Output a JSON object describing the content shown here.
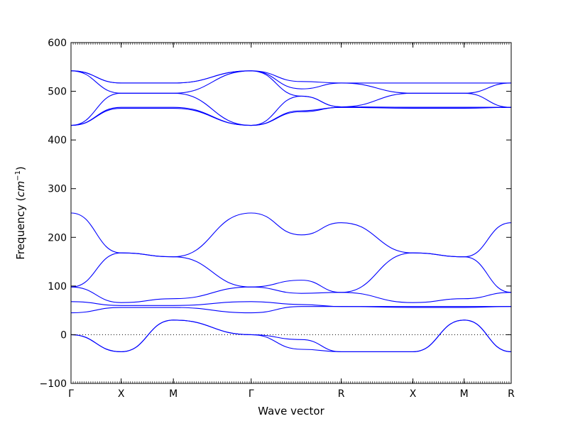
{
  "chart_data": {
    "type": "line",
    "title": "",
    "xlabel": "Wave vector",
    "ylabel": "Frequency",
    "ylabel_unit_base": "cm",
    "ylabel_unit_exp": "−1",
    "ylim": [
      -100,
      600
    ],
    "yticks": [
      -100,
      0,
      100,
      200,
      300,
      400,
      500,
      600
    ],
    "y_tick_labels": [
      "−100",
      "0",
      "100",
      "200",
      "300",
      "400",
      "500",
      "600"
    ],
    "xlim": [
      0,
      8
    ],
    "xticks": [
      0,
      1,
      2,
      3,
      4,
      5,
      6,
      7,
      8
    ],
    "x_tick_labels": [
      "Γ",
      "X",
      "M",
      "Γ",
      "R",
      "X",
      "M",
      "R"
    ],
    "x_tick_positions": [
      0,
      0.98,
      2.0,
      3.52,
      5.28,
      6.68,
      7.68,
      8.6
    ],
    "x_range": [
      0,
      8.6
    ],
    "zero_line": true,
    "line_color": "#0000ff",
    "zero_line_color": "#000000",
    "series": [
      {
        "x": [
          0,
          0.98,
          2.0,
          3.52,
          4.5,
          5.28,
          6.68,
          7.68,
          8.6
        ],
        "values": [
          542,
          517,
          517,
          542,
          520,
          517,
          517,
          517,
          517
        ]
      },
      {
        "x": [
          0,
          0.98,
          2.0,
          3.52,
          4.5,
          5.28,
          6.68,
          7.68,
          8.6
        ],
        "values": [
          542,
          517,
          517,
          542,
          505,
          517,
          496,
          496,
          517
        ]
      },
      {
        "x": [
          0,
          0.98,
          2.0,
          3.52,
          4.5,
          5.28,
          6.68,
          7.68,
          8.6
        ],
        "values": [
          542,
          496,
          496,
          542,
          490,
          468,
          496,
          496,
          467
        ]
      },
      {
        "x": [
          0,
          0.98,
          2.0,
          3.52,
          4.5,
          5.28,
          6.68,
          7.68,
          8.6
        ],
        "values": [
          430,
          496,
          496,
          430,
          490,
          468,
          467,
          467,
          467
        ]
      },
      {
        "x": [
          0,
          0.98,
          2.0,
          3.52,
          4.5,
          5.28,
          6.68,
          7.68,
          8.6
        ],
        "values": [
          430,
          467,
          467,
          430,
          460,
          467,
          467,
          467,
          467
        ]
      },
      {
        "x": [
          0,
          0.98,
          2.0,
          3.52,
          4.5,
          5.28,
          6.68,
          7.68,
          8.6
        ],
        "values": [
          430,
          465,
          465,
          430,
          458,
          467,
          465,
          465,
          467
        ]
      },
      {
        "x": [
          0,
          0.98,
          2.0,
          3.52,
          4.5,
          5.28,
          6.68,
          7.68,
          8.6
        ],
        "values": [
          250,
          168,
          160,
          250,
          205,
          230,
          168,
          160,
          230
        ]
      },
      {
        "x": [
          0,
          0.98,
          2.0,
          3.52,
          4.5,
          5.28,
          6.68,
          7.68,
          8.6
        ],
        "values": [
          98,
          168,
          160,
          98,
          112,
          87,
          168,
          160,
          87
        ]
      },
      {
        "x": [
          0,
          0.98,
          2.0,
          3.52,
          4.5,
          5.28,
          6.68,
          7.68,
          8.6
        ],
        "values": [
          98,
          66,
          74,
          98,
          85,
          87,
          66,
          74,
          87
        ]
      },
      {
        "x": [
          0,
          0.98,
          2.0,
          3.52,
          4.5,
          5.28,
          6.68,
          7.68,
          8.6
        ],
        "values": [
          68,
          60,
          60,
          68,
          62,
          58,
          58,
          58,
          58
        ]
      },
      {
        "x": [
          0,
          0.98,
          2.0,
          3.52,
          4.5,
          5.28,
          6.68,
          7.68,
          8.6
        ],
        "values": [
          45,
          56,
          56,
          45,
          58,
          58,
          56,
          56,
          58
        ]
      },
      {
        "x": [
          0,
          0.98,
          2.0,
          3.52,
          4.5,
          5.28,
          6.68,
          7.68,
          8.6
        ],
        "values": [
          0,
          -35,
          30,
          0,
          -10,
          -35,
          -35,
          30,
          -35
        ]
      },
      {
        "x": [
          0,
          0.98,
          2.0,
          3.52,
          4.5,
          5.28,
          6.68,
          7.68,
          8.6
        ],
        "values": [
          0,
          -35,
          30,
          0,
          -30,
          -35,
          -35,
          30,
          -35
        ]
      }
    ]
  }
}
